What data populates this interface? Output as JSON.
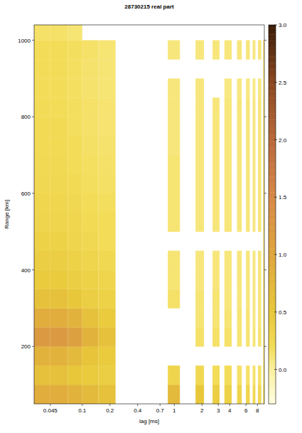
{
  "chart_data": {
    "type": "heatmap",
    "title": "28730215 real part",
    "x_label": "lag [ms]",
    "y_label": "Range [km]",
    "log": "x",
    "xlim": [
      0.03,
      9.5
    ],
    "xticks": [
      0.045,
      0.1,
      0.2,
      0.4,
      0.7,
      1,
      2,
      3,
      4,
      6,
      8
    ],
    "ylim": [
      50,
      1040
    ],
    "yticks": [
      200,
      400,
      600,
      800,
      1000
    ],
    "x_edges": [
      0.03,
      0.045,
      0.07,
      0.1,
      0.15,
      0.23,
      0.85,
      1.15,
      1.7,
      2.1,
      2.6,
      3.1,
      3.5,
      4.2,
      4.8,
      5.4,
      6.0,
      6.6,
      7.1,
      7.6,
      8.1,
      8.8,
      9.2,
      9.5
    ],
    "y_edges": [
      50,
      100,
      150,
      200,
      250,
      300,
      350,
      400,
      450,
      500,
      550,
      600,
      650,
      700,
      750,
      800,
      850,
      900,
      950,
      1000,
      1050
    ],
    "cells": [
      [
        0.9,
        0.9,
        0.8,
        0.7,
        0.6,
        null,
        0.7,
        null,
        0.5,
        null,
        0.4,
        null,
        0.35,
        null,
        0.3,
        null,
        0.3,
        null,
        0.25,
        null,
        0.25,
        null,
        0.2
      ],
      [
        0.6,
        0.6,
        0.5,
        0.45,
        0.4,
        null,
        0.3,
        null,
        0.25,
        null,
        0.2,
        null,
        0.2,
        null,
        0.15,
        null,
        0.15,
        null,
        0.15,
        null,
        0.15,
        null,
        0.15
      ],
      [
        0.8,
        0.8,
        0.7,
        0.55,
        0.45,
        null,
        null,
        null,
        null,
        null,
        null,
        null,
        null,
        null,
        null,
        null,
        null,
        null,
        null,
        null,
        null,
        null,
        0.1
      ],
      [
        1.2,
        1.2,
        1.1,
        0.8,
        0.6,
        null,
        null,
        null,
        0.15,
        null,
        0.15,
        null,
        0.15,
        null,
        0.12,
        null,
        0.12,
        null,
        0.12,
        null,
        0.12,
        null,
        0.12
      ],
      [
        0.9,
        0.9,
        0.8,
        0.6,
        0.45,
        null,
        null,
        null,
        0.12,
        null,
        0.12,
        null,
        0.12,
        null,
        0.12,
        null,
        0.12,
        null,
        0.1,
        null,
        0.1,
        null,
        0.1
      ],
      [
        0.6,
        0.6,
        0.5,
        0.4,
        0.35,
        null,
        0.15,
        null,
        0.12,
        null,
        0.12,
        null,
        0.1,
        null,
        0.1,
        null,
        0.1,
        null,
        0.1,
        null,
        0.1,
        null,
        0.1
      ],
      [
        0.45,
        0.45,
        0.4,
        0.35,
        0.3,
        null,
        0.12,
        null,
        0.1,
        null,
        0.1,
        null,
        0.1,
        null,
        0.1,
        null,
        0.1,
        null,
        0.1,
        null,
        0.1,
        null,
        0.1
      ],
      [
        0.4,
        0.4,
        0.35,
        0.3,
        0.25,
        null,
        0.12,
        null,
        0.1,
        null,
        0.1,
        null,
        0.1,
        null,
        0.1,
        null,
        0.1,
        null,
        0.1,
        null,
        0.1,
        null,
        0.1
      ],
      [
        0.35,
        0.35,
        0.3,
        0.25,
        0.2,
        null,
        null,
        null,
        null,
        null,
        null,
        null,
        null,
        null,
        null,
        null,
        null,
        null,
        null,
        null,
        null,
        null,
        0.08
      ],
      [
        0.3,
        0.3,
        0.28,
        0.22,
        0.2,
        null,
        0.12,
        null,
        0.1,
        null,
        0.1,
        null,
        0.1,
        null,
        0.1,
        null,
        0.1,
        null,
        0.1,
        null,
        0.1,
        null,
        0.1
      ],
      [
        0.28,
        0.28,
        0.25,
        0.2,
        0.18,
        null,
        0.12,
        null,
        0.1,
        null,
        0.1,
        null,
        0.1,
        null,
        0.1,
        null,
        0.1,
        null,
        0.1,
        null,
        0.1,
        null,
        0.1
      ],
      [
        0.25,
        0.25,
        0.22,
        0.18,
        0.16,
        null,
        0.12,
        null,
        0.1,
        null,
        0.1,
        null,
        0.1,
        null,
        0.1,
        null,
        0.1,
        null,
        0.1,
        null,
        0.1,
        null,
        0.1
      ],
      [
        0.24,
        0.24,
        0.2,
        0.17,
        0.15,
        null,
        0.12,
        null,
        0.1,
        null,
        0.1,
        null,
        0.1,
        null,
        0.1,
        null,
        0.1,
        null,
        0.1,
        null,
        0.1,
        null,
        0.1
      ],
      [
        0.23,
        0.22,
        0.2,
        0.16,
        0.14,
        null,
        0.1,
        null,
        0.1,
        null,
        0.1,
        null,
        0.1,
        null,
        0.1,
        null,
        0.1,
        null,
        0.1,
        null,
        0.1,
        null,
        0.1
      ],
      [
        0.22,
        0.22,
        0.18,
        0.15,
        0.13,
        null,
        0.1,
        null,
        0.1,
        null,
        0.1,
        null,
        0.1,
        null,
        0.1,
        null,
        0.1,
        null,
        0.1,
        null,
        0.1,
        null,
        0.1
      ],
      [
        0.21,
        0.2,
        0.18,
        0.15,
        0.13,
        null,
        0.1,
        null,
        0.1,
        null,
        0.1,
        null,
        0.1,
        null,
        0.1,
        null,
        0.1,
        null,
        0.1,
        null,
        0.1,
        null,
        0.1
      ],
      [
        0.2,
        0.2,
        0.17,
        0.14,
        0.12,
        null,
        0.1,
        null,
        0.1,
        null,
        null,
        null,
        0.08,
        null,
        0.08,
        null,
        0.08,
        null,
        0.08,
        null,
        0.08,
        null,
        0.08
      ],
      [
        0.2,
        0.2,
        0.17,
        0.14,
        0.12,
        null,
        null,
        null,
        null,
        null,
        null,
        null,
        null,
        null,
        null,
        null,
        null,
        null,
        null,
        null,
        null,
        null,
        0.08
      ],
      [
        0.2,
        0.2,
        0.18,
        0.15,
        0.12,
        null,
        0.1,
        null,
        0.1,
        null,
        0.1,
        null,
        0.1,
        null,
        0.1,
        null,
        0.1,
        null,
        0.1,
        null,
        0.1,
        null,
        0.1
      ],
      [
        0.15,
        0.15,
        0.12,
        null,
        null,
        null,
        null,
        null,
        null,
        null,
        null,
        null,
        null,
        null,
        null,
        null,
        null,
        null,
        null,
        null,
        null,
        null,
        null
      ]
    ],
    "clim": [
      -0.3,
      3.0
    ],
    "cticks": [
      {
        "value": 0,
        "label": "0.0"
      },
      0.5,
      {
        "value": 1,
        "label": "1.0"
      },
      1.5,
      {
        "value": 2,
        "label": "2.0"
      },
      2.5,
      {
        "value": 3,
        "label": "3.0"
      }
    ]
  }
}
